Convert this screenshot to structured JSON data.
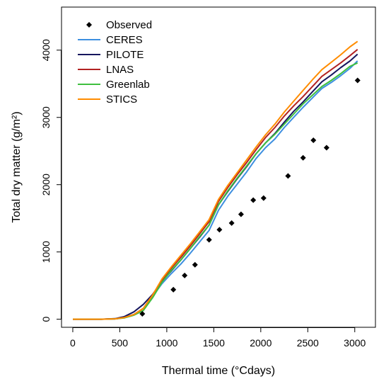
{
  "chart_data": {
    "type": "line",
    "xlabel": "Thermal time (°Cdays)",
    "ylabel": "Total dry matter (g/m²)",
    "xlim": [
      -120,
      3220
    ],
    "ylim": [
      -120,
      4640
    ],
    "x_ticks": [
      0,
      500,
      1000,
      1500,
      2000,
      2500,
      3000
    ],
    "y_ticks": [
      0,
      1000,
      2000,
      3000,
      4000
    ],
    "grid": false,
    "legend_position": "top-left",
    "legend": [
      "Observed",
      "CERES",
      "PILOTE",
      "LNAS",
      "Greenlab",
      "STICS"
    ],
    "observed": {
      "name": "Observed",
      "color": "#000000",
      "points": [
        [
          740,
          80
        ],
        [
          1070,
          440
        ],
        [
          1190,
          650
        ],
        [
          1300,
          810
        ],
        [
          1450,
          1180
        ],
        [
          1560,
          1330
        ],
        [
          1690,
          1430
        ],
        [
          1790,
          1560
        ],
        [
          1920,
          1770
        ],
        [
          2030,
          1800
        ],
        [
          2290,
          2130
        ],
        [
          2450,
          2400
        ],
        [
          2560,
          2660
        ],
        [
          2700,
          2550
        ],
        [
          3030,
          3550
        ]
      ]
    },
    "series": [
      {
        "name": "CERES",
        "color": "#3d8fe0",
        "x": [
          0,
          300,
          450,
          550,
          650,
          750,
          850,
          950,
          1050,
          1150,
          1250,
          1350,
          1450,
          1550,
          1650,
          1750,
          1850,
          1950,
          2050,
          2150,
          2250,
          2350,
          2450,
          2550,
          2650,
          2750,
          2850,
          2950,
          3030
        ],
        "y": [
          0,
          0,
          5,
          25,
          70,
          160,
          340,
          530,
          680,
          820,
          980,
          1150,
          1320,
          1620,
          1830,
          2010,
          2190,
          2390,
          2550,
          2680,
          2850,
          3000,
          3150,
          3290,
          3430,
          3520,
          3620,
          3730,
          3840
        ]
      },
      {
        "name": "PILOTE",
        "color": "#16165e",
        "x": [
          0,
          300,
          450,
          550,
          650,
          750,
          850,
          950,
          1050,
          1150,
          1250,
          1350,
          1450,
          1550,
          1650,
          1750,
          1850,
          1950,
          2050,
          2150,
          2250,
          2350,
          2450,
          2550,
          2650,
          2750,
          2850,
          2950,
          3030
        ],
        "y": [
          0,
          0,
          8,
          40,
          110,
          220,
          370,
          560,
          720,
          880,
          1050,
          1220,
          1400,
          1700,
          1900,
          2090,
          2270,
          2460,
          2620,
          2760,
          2930,
          3090,
          3230,
          3380,
          3530,
          3630,
          3740,
          3840,
          3940
        ]
      },
      {
        "name": "LNAS",
        "color": "#b22222",
        "x": [
          0,
          300,
          450,
          550,
          650,
          750,
          850,
          950,
          1050,
          1150,
          1250,
          1350,
          1450,
          1550,
          1650,
          1750,
          1850,
          1950,
          2050,
          2150,
          2250,
          2350,
          2450,
          2550,
          2650,
          2750,
          2850,
          2950,
          3030
        ],
        "y": [
          0,
          0,
          5,
          25,
          70,
          160,
          360,
          580,
          760,
          920,
          1090,
          1270,
          1450,
          1750,
          1960,
          2150,
          2330,
          2520,
          2700,
          2850,
          3020,
          3170,
          3310,
          3460,
          3610,
          3710,
          3810,
          3920,
          4010
        ]
      },
      {
        "name": "Greenlab",
        "color": "#3fbf3f",
        "x": [
          0,
          300,
          450,
          550,
          650,
          750,
          850,
          950,
          1050,
          1150,
          1250,
          1350,
          1450,
          1550,
          1650,
          1750,
          1850,
          1950,
          2050,
          2150,
          2250,
          2350,
          2450,
          2550,
          2650,
          2750,
          2850,
          2950,
          3030
        ],
        "y": [
          0,
          0,
          5,
          20,
          60,
          130,
          320,
          550,
          730,
          880,
          1050,
          1230,
          1400,
          1700,
          1910,
          2100,
          2280,
          2460,
          2620,
          2750,
          2900,
          3050,
          3200,
          3330,
          3460,
          3550,
          3650,
          3760,
          3810
        ]
      },
      {
        "name": "STICS",
        "color": "#ff8c00",
        "x": [
          0,
          300,
          450,
          550,
          650,
          750,
          850,
          950,
          1050,
          1150,
          1250,
          1350,
          1450,
          1550,
          1650,
          1750,
          1850,
          1950,
          2050,
          2150,
          2250,
          2350,
          2450,
          2550,
          2650,
          2750,
          2850,
          2950,
          3030
        ],
        "y": [
          0,
          0,
          5,
          25,
          70,
          160,
          360,
          600,
          780,
          950,
          1120,
          1300,
          1480,
          1780,
          1990,
          2180,
          2370,
          2560,
          2740,
          2900,
          3080,
          3240,
          3400,
          3560,
          3710,
          3820,
          3930,
          4050,
          4130
        ]
      }
    ]
  }
}
